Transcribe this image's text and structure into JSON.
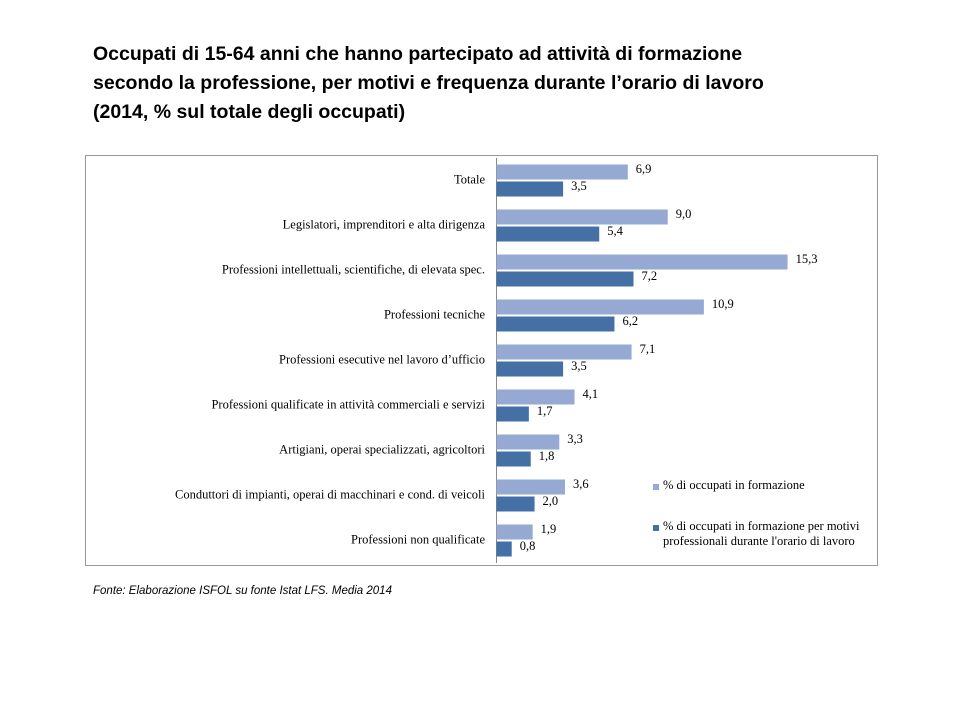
{
  "chart_data": {
    "type": "bar",
    "orientation": "horizontal",
    "title": [
      "Occupati di 15-64 anni che hanno partecipato ad attività di formazione",
      "secondo la professione, per motivi e frequenza durante l’orario di lavoro",
      "(2014, % sul totale degli occupati)"
    ],
    "source": "Fonte: Elaborazione ISFOL su fonte Istat LFS. Media 2014",
    "categories": [
      "Totale",
      "Legislatori, imprenditori e alta dirigenza",
      "Professioni intellettuali, scientifiche, di elevata spec.",
      "Professioni tecniche",
      "Professioni esecutive nel lavoro d’ufficio",
      "Professioni qualificate in attività commerciali e servizi",
      "Artigiani, operai specializzati, agricoltori",
      "Conduttori di impianti, operai di macchinari e cond. di veicoli",
      "Professioni non qualificate"
    ],
    "series": [
      {
        "name": "% di occupati in formazione",
        "color": "#95a9d3",
        "values": [
          6.9,
          9.0,
          15.3,
          10.9,
          7.1,
          4.1,
          3.3,
          3.6,
          1.9
        ],
        "value_labels": [
          "6,9",
          "9,0",
          "15,3",
          "10,9",
          "7,1",
          "4,1",
          "3,3",
          "3,6",
          "1,9"
        ]
      },
      {
        "name": "% di occupati in formazione per motivi professionali durante l'orario di lavoro",
        "color": "#4470a5",
        "values": [
          3.5,
          5.4,
          7.2,
          6.2,
          3.5,
          1.7,
          1.8,
          2.0,
          0.8
        ],
        "value_labels": [
          "3,5",
          "5,4",
          "7,2",
          "6,2",
          "3,5",
          "1,7",
          "1,8",
          "2,0",
          "0,8"
        ]
      }
    ],
    "xlim": [
      0,
      20
    ],
    "legend": "lower right"
  }
}
